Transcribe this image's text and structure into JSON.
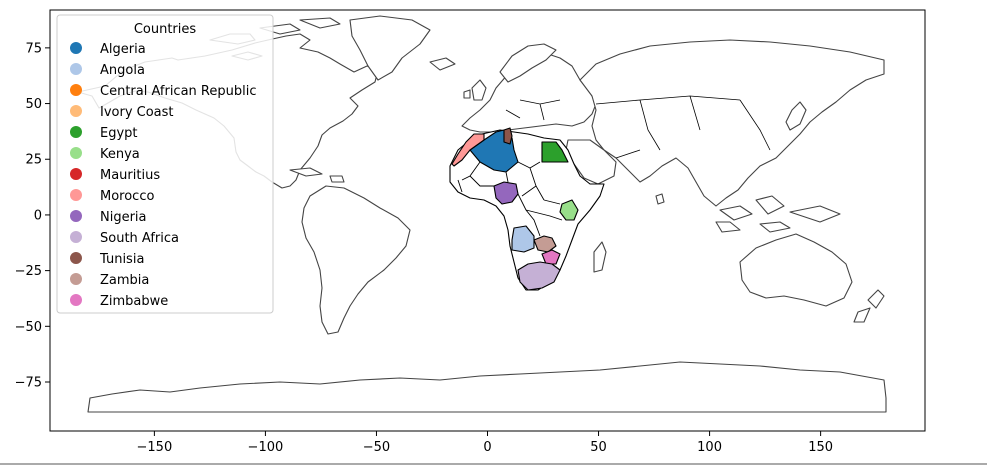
{
  "chart_data": {
    "type": "choropleth-map",
    "projection": "plate-carree",
    "xlim": [
      -197,
      197
    ],
    "ylim": [
      -97,
      92
    ],
    "xticks": [
      -150,
      -100,
      -50,
      0,
      50,
      100,
      150
    ],
    "yticks": [
      75,
      50,
      25,
      0,
      -25,
      -50,
      -75
    ],
    "grid": false,
    "legend": {
      "title": "Countries",
      "placement": "top-left",
      "entries": [
        {
          "name": "Algeria",
          "color": "#1f77b4"
        },
        {
          "name": "Angola",
          "color": "#aec7e8"
        },
        {
          "name": "Central African Republic",
          "color": "#ff7f0e"
        },
        {
          "name": "Ivory Coast",
          "color": "#ffbb78"
        },
        {
          "name": "Egypt",
          "color": "#2ca02c"
        },
        {
          "name": "Kenya",
          "color": "#98df8a"
        },
        {
          "name": "Mauritius",
          "color": "#d62728"
        },
        {
          "name": "Morocco",
          "color": "#ff9896"
        },
        {
          "name": "Nigeria",
          "color": "#9467bd"
        },
        {
          "name": "South Africa",
          "color": "#c5b0d5"
        },
        {
          "name": "Tunisia",
          "color": "#8c564b"
        },
        {
          "name": "Zambia",
          "color": "#c49c94"
        },
        {
          "name": "Zimbabwe",
          "color": "#e377c2"
        }
      ]
    },
    "colors": {
      "base_outline": "#444444",
      "highlight_outline": "#000000",
      "background": "#ffffff"
    }
  }
}
